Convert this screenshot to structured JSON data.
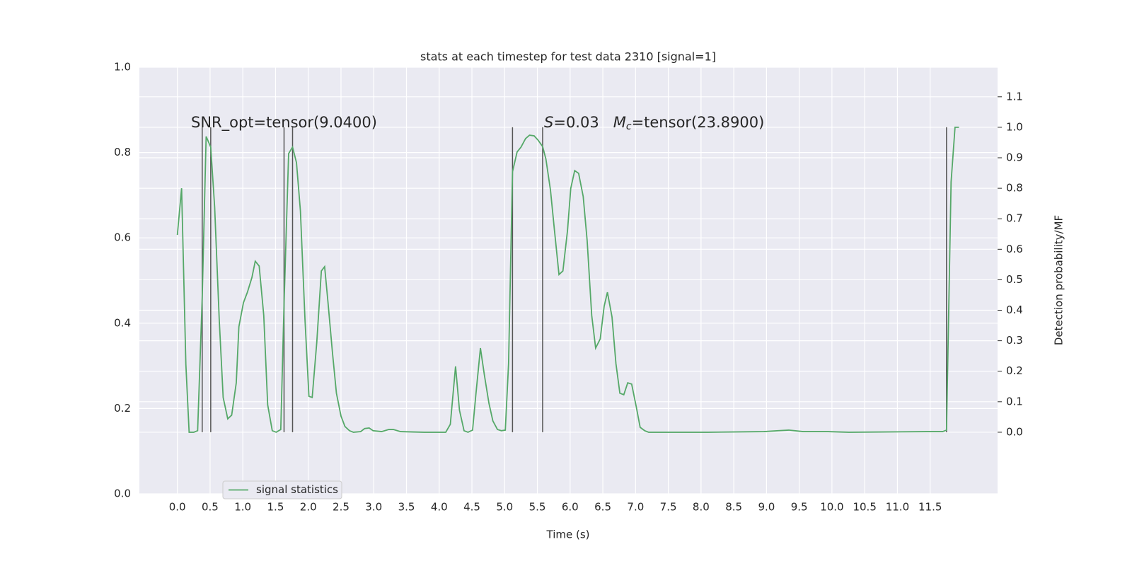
{
  "chart_data": {
    "type": "line",
    "title": "stats at each timestep for test data 2310 [signal=1]",
    "xlabel": "Time (s)",
    "y2label": "Detection probability/MF",
    "xlim": [
      -0.58,
      12.53
    ],
    "xticks": [
      {
        "value": 0,
        "label": "0.0"
      },
      0.5,
      {
        "value": 1,
        "label": "1.0"
      },
      1.5,
      {
        "value": 2,
        "label": "2.0"
      },
      2.5,
      {
        "value": 3,
        "label": "3.0"
      },
      3.5,
      {
        "value": 4,
        "label": "4.0"
      },
      4.5,
      {
        "value": 5,
        "label": "5.0"
      },
      5.5,
      {
        "value": 6,
        "label": "6.0"
      },
      6.5,
      {
        "value": 7,
        "label": "7.0"
      },
      7.5,
      {
        "value": 8,
        "label": "8.0"
      },
      8.5,
      {
        "value": 9,
        "label": "9.0"
      },
      9.5,
      {
        "value": 10,
        "label": "10.0"
      },
      10.5,
      {
        "value": 11,
        "label": "11.0"
      },
      11.5
    ],
    "ylim": [
      0,
      1
    ],
    "yticks": [
      {
        "value": 0,
        "label": "0.0"
      },
      0.2,
      0.4,
      0.6,
      0.8,
      {
        "value": 1,
        "label": "1.0"
      }
    ],
    "y2lim": [
      -0.202,
      1.197
    ],
    "y2ticks": [
      {
        "value": 0,
        "label": "0.0"
      },
      0.1,
      0.2,
      0.3,
      0.4,
      0.5,
      0.6,
      0.7,
      0.8,
      0.9,
      {
        "value": 1,
        "label": "1.0"
      },
      1.1
    ],
    "grid": true,
    "legend": "lower left",
    "x": [
      0,
      0.065,
      0.13,
      0.18,
      0.25,
      0.31,
      0.38,
      0.44,
      0.51,
      0.57,
      0.64,
      0.7,
      0.77,
      0.83,
      0.9,
      0.94,
      1.01,
      1.07,
      1.14,
      1.19,
      1.25,
      1.32,
      1.38,
      1.45,
      1.51,
      1.58,
      1.63,
      1.7,
      1.76,
      1.82,
      1.88,
      1.95,
      2.01,
      2.06,
      2.13,
      2.2,
      2.25,
      2.3,
      2.37,
      2.43,
      2.5,
      2.56,
      2.63,
      2.69,
      2.8,
      2.86,
      2.93,
      2.99,
      3.12,
      3.23,
      3.3,
      3.41,
      3.77,
      4.1,
      4.17,
      4.25,
      4.31,
      4.38,
      4.44,
      4.51,
      4.56,
      4.63,
      4.69,
      4.76,
      4.82,
      4.89,
      4.95,
      5.01,
      5.06,
      5.12,
      5.19,
      5.25,
      5.32,
      5.38,
      5.45,
      5.51,
      5.58,
      5.63,
      5.7,
      5.76,
      5.83,
      5.89,
      5.96,
      6.01,
      6.07,
      6.13,
      6.2,
      6.26,
      6.33,
      6.39,
      6.46,
      6.52,
      6.57,
      6.64,
      6.7,
      6.76,
      6.82,
      6.88,
      6.94,
      7.01,
      7.07,
      7.14,
      7.2,
      8.1,
      8.96,
      9.18,
      9.34,
      9.56,
      9.94,
      10.26,
      11.45,
      11.69,
      11.75,
      11.82,
      11.88,
      11.94
    ],
    "series": [
      {
        "name": "signal statistics",
        "color": "#55a868",
        "axis": "y2",
        "values": [
          0.647,
          0.8,
          0.223,
          0,
          0,
          0.005,
          0.443,
          0.97,
          0.935,
          0.738,
          0.369,
          0.114,
          0.044,
          0.056,
          0.162,
          0.346,
          0.425,
          0.459,
          0.508,
          0.561,
          0.545,
          0.383,
          0.09,
          0.005,
          0,
          0.009,
          0.42,
          0.914,
          0.935,
          0.884,
          0.726,
          0.369,
          0.118,
          0.114,
          0.295,
          0.529,
          0.543,
          0.429,
          0.26,
          0.128,
          0.053,
          0.019,
          0.005,
          0,
          0.002,
          0.012,
          0.014,
          0.005,
          0.002,
          0.009,
          0.009,
          0.002,
          0,
          0,
          0.026,
          0.216,
          0.072,
          0.005,
          0,
          0.007,
          0.123,
          0.276,
          0.188,
          0.095,
          0.037,
          0.009,
          0.005,
          0.007,
          0.225,
          0.854,
          0.919,
          0.935,
          0.963,
          0.974,
          0.972,
          0.958,
          0.937,
          0.896,
          0.794,
          0.664,
          0.517,
          0.529,
          0.661,
          0.8,
          0.858,
          0.849,
          0.773,
          0.629,
          0.383,
          0.276,
          0.306,
          0.413,
          0.459,
          0.378,
          0.225,
          0.128,
          0.123,
          0.162,
          0.158,
          0.084,
          0.016,
          0.005,
          0,
          0,
          0.002,
          0.005,
          0.007,
          0.002,
          0.002,
          0,
          0.002,
          0.002,
          0.007,
          0.821,
          1.0,
          1.0
        ]
      }
    ],
    "vlines": [
      0.38,
      0.51,
      1.63,
      1.76,
      5.12,
      5.58,
      11.75
    ],
    "vline_range": [
      0,
      1
    ],
    "vline_color": "#555555",
    "annotations": [
      {
        "parts": [
          {
            "text": "SNR_opt=tensor(9.0400)"
          }
        ]
      },
      {
        "parts": [
          {
            "text": "S",
            "italic": true
          },
          {
            "text": "=0.03   "
          },
          {
            "text": "M",
            "italic": true
          },
          {
            "text": "c",
            "italic": true,
            "sub": true
          },
          {
            "text": "=tensor(23.8900)"
          }
        ]
      }
    ]
  }
}
